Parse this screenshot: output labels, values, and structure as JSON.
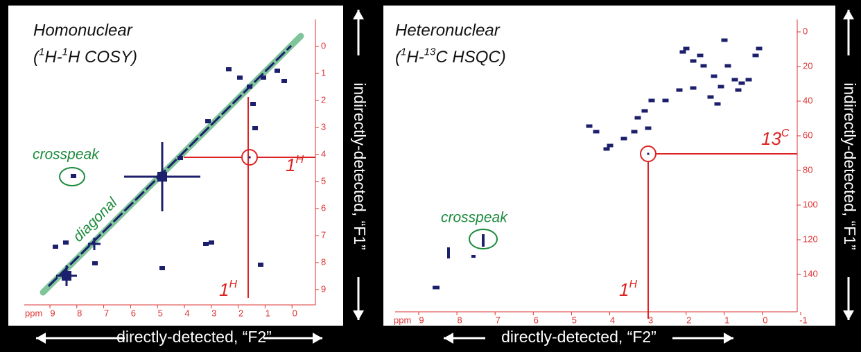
{
  "panels": [
    {
      "title": "Homonuclear",
      "subtitle": [
        "(",
        "1",
        "H-",
        "1",
        "H COSY)"
      ],
      "x_unit": "ppm",
      "x_ticks": [
        "9",
        "8",
        "7",
        "6",
        "5",
        "4",
        "3",
        "2",
        "1",
        "0"
      ],
      "y_ticks": [
        "0",
        "1",
        "2",
        "3",
        "4",
        "5",
        "6",
        "7",
        "8",
        "9"
      ],
      "crosspeak_label": "crosspeak",
      "diagonal_label": "diagonal",
      "f1_label": [
        "1",
        "H"
      ],
      "f2_label": [
        "1",
        "H"
      ],
      "x_caption": "directly-detected, “F2”",
      "y_caption": "indirectly-detected, “F1”"
    },
    {
      "title": "Heteronuclear",
      "subtitle": [
        "(",
        "1",
        "H-",
        "13",
        "C HSQC)"
      ],
      "x_unit": "ppm",
      "x_ticks": [
        "9",
        "8",
        "7",
        "6",
        "5",
        "4",
        "3",
        "2",
        "1",
        "0",
        "-1"
      ],
      "y_ticks": [
        "0",
        "20",
        "40",
        "60",
        "80",
        "100",
        "120",
        "140"
      ],
      "crosspeak_label": "crosspeak",
      "f1_label": [
        "13",
        "C"
      ],
      "f2_label": [
        "1",
        "H"
      ],
      "x_caption": "directly-detected, “F2”",
      "y_caption": "indirectly-detected, “F1”"
    }
  ]
}
